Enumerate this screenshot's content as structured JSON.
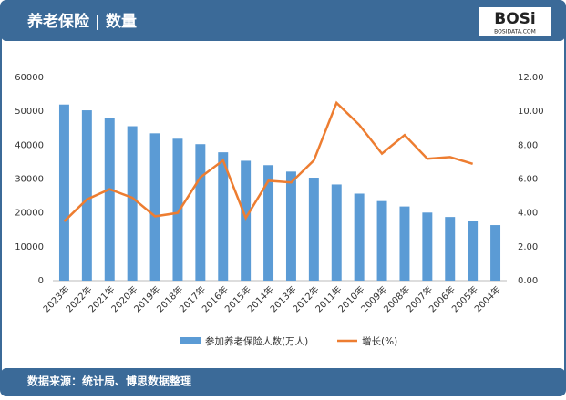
{
  "header": {
    "logo": "BOSi",
    "logo_sub": "BOSIDATA.COM"
  },
  "footer": "数据来源：统计局、博思数据整理",
  "chart_data": {
    "type": "bar_line",
    "title": "养老保险 | 数量",
    "categories": [
      "2023年",
      "2022年",
      "2021年",
      "2020年",
      "2019年",
      "2018年",
      "2017年",
      "2016年",
      "2015年",
      "2014年",
      "2013年",
      "2012年",
      "2011年",
      "2010年",
      "2009年",
      "2008年",
      "2007年",
      "2006年",
      "2005年",
      "2004年"
    ],
    "series": [
      {
        "name": "参加养老保险人数(万人)",
        "type": "bar",
        "color": "#5b9bd5",
        "values": [
          52000,
          50300,
          48000,
          45600,
          43500,
          41900,
          40300,
          37900,
          35400,
          34100,
          32200,
          30400,
          28400,
          25700,
          23500,
          21900,
          20100,
          18800,
          17500,
          16400
        ]
      },
      {
        "name": "增长(%)",
        "type": "line",
        "axis": "y2",
        "color": "#ed7d31",
        "values": [
          3.5,
          4.8,
          5.4,
          4.9,
          3.8,
          4.0,
          6.1,
          7.1,
          3.7,
          5.9,
          5.8,
          7.1,
          10.5,
          9.2,
          7.5,
          8.6,
          7.2,
          7.3,
          6.9,
          null
        ]
      }
    ],
    "ylim": [
      0,
      60000
    ],
    "yticks": [
      0,
      10000,
      20000,
      30000,
      40000,
      50000,
      60000
    ],
    "y2lim": [
      0,
      12
    ],
    "y2ticks": [
      {
        "value": 0,
        "label": "0.00"
      },
      {
        "value": 2,
        "label": "2.00"
      },
      {
        "value": 4,
        "label": "4.00"
      },
      {
        "value": 6,
        "label": "6.00"
      },
      {
        "value": 8,
        "label": "8.00"
      },
      {
        "value": 10,
        "label": "10.00"
      },
      {
        "value": 12,
        "label": "12.00"
      }
    ],
    "legend": "bottom"
  }
}
